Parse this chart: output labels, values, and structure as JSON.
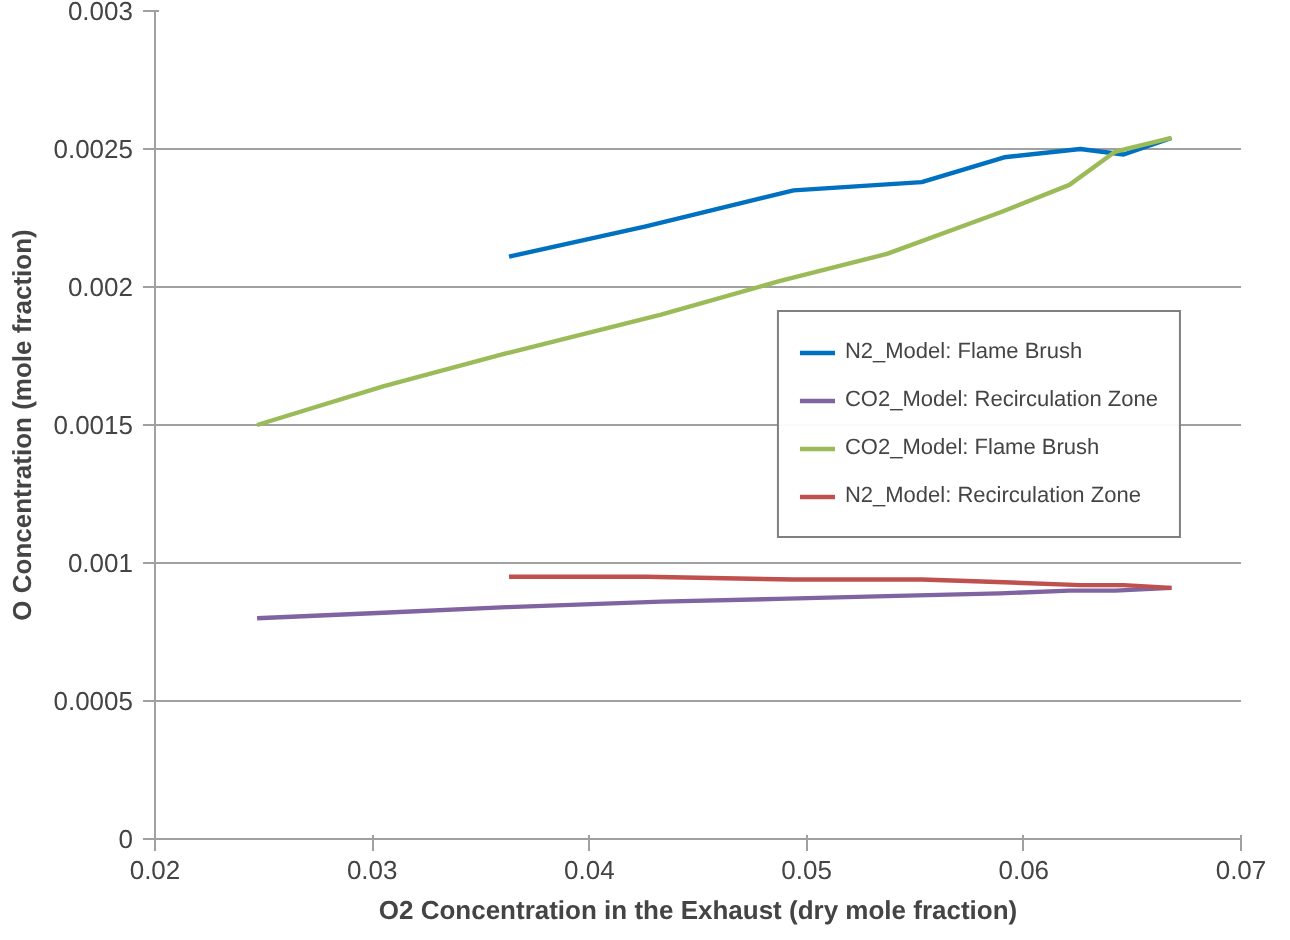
{
  "chart_data": {
    "type": "line",
    "xlabel": "O2 Concentration in the Exhaust (dry mole fraction)",
    "ylabel": "O Concentration (mole fraction)",
    "xlim": [
      0.02,
      0.07
    ],
    "xticks": [
      {
        "value": 0.02,
        "label": "0.02"
      },
      {
        "value": 0.03,
        "label": "0.03"
      },
      {
        "value": 0.04,
        "label": "0.04"
      },
      {
        "value": 0.05,
        "label": "0.05"
      },
      {
        "value": 0.06,
        "label": "0.06"
      },
      {
        "value": 0.07,
        "label": "0.07"
      }
    ],
    "ylim": [
      0,
      0.003
    ],
    "yticks": [
      0,
      {
        "value": 0.0005,
        "label": "0.0005"
      },
      {
        "value": 0.001,
        "label": "0.001"
      },
      {
        "value": 0.0015,
        "label": "0.0015"
      },
      {
        "value": 0.002,
        "label": "0.002"
      },
      {
        "value": 0.0025,
        "label": "0.0025"
      },
      {
        "value": 0.003,
        "label": "0.003"
      }
    ],
    "grid": "y",
    "legend": "right",
    "marker": "none",
    "line_style": "solid",
    "series": [
      {
        "name": "N2_Model: Flame Brush",
        "color": "#0070c0",
        "x": [
          0.0363,
          0.0426,
          0.0494,
          0.0553,
          0.0591,
          0.0626,
          0.0646,
          0.0668
        ],
        "values": [
          0.00211,
          0.00222,
          0.00235,
          0.00238,
          0.00247,
          0.0025,
          0.00248,
          0.00254
        ]
      },
      {
        "name": "CO2_Model: Recirculation Zone",
        "color": "#8064a2",
        "x": [
          0.0247,
          0.0305,
          0.0362,
          0.0433,
          0.0487,
          0.0537,
          0.0589,
          0.0621,
          0.0642,
          0.0668
        ],
        "values": [
          0.0008,
          0.00082,
          0.00084,
          0.00086,
          0.00087,
          0.00088,
          0.00089,
          0.0009,
          0.0009,
          0.00091
        ]
      },
      {
        "name": "CO2_Model: Flame Brush",
        "color": "#9bbb59",
        "x": [
          0.0247,
          0.0305,
          0.0362,
          0.0433,
          0.0487,
          0.0537,
          0.0589,
          0.0621,
          0.0642,
          0.0668
        ],
        "values": [
          0.0015,
          0.00164,
          0.00176,
          0.0019,
          0.00202,
          0.00212,
          0.00227,
          0.00237,
          0.00249,
          0.00254
        ]
      },
      {
        "name": "N2_Model: Recirculation Zone",
        "color": "#c0504d",
        "x": [
          0.0363,
          0.0426,
          0.0494,
          0.0553,
          0.0591,
          0.0626,
          0.0646,
          0.0668
        ],
        "values": [
          0.00095,
          0.00095,
          0.00094,
          0.00094,
          0.00093,
          0.00092,
          0.00092,
          0.00091
        ]
      }
    ]
  }
}
